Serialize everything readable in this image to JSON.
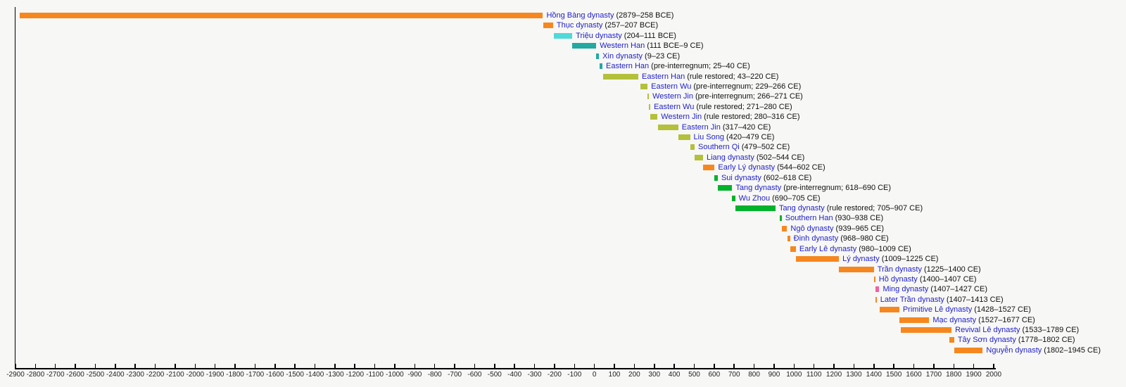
{
  "page": {
    "background": "#f7f7f5",
    "title": ""
  },
  "chart_data": {
    "type": "bar",
    "subtype": "horizontal-timeline-gantt",
    "title": "",
    "xlabel": "",
    "ylabel": "",
    "grid": false,
    "legend": "none",
    "x_axis": {
      "min": -2900,
      "max": 2000,
      "tick_step": 100,
      "tick_labels": [
        "-2900",
        "-2800",
        "-2700",
        "-2600",
        "-2500",
        "-2400",
        "-2300",
        "-2200",
        "-2100",
        "-2000",
        "-1900",
        "-1800",
        "-1700",
        "-1600",
        "-1500",
        "-1400",
        "-1300",
        "-1200",
        "-1100",
        "-1000",
        "-900",
        "-800",
        "-700",
        "-600",
        "-500",
        "-400",
        "-300",
        "-200",
        "-100",
        "0",
        "100",
        "200",
        "300",
        "400",
        "500",
        "600",
        "700",
        "800",
        "900",
        "1000",
        "1100",
        "1200",
        "1300",
        "1400",
        "1500",
        "1600",
        "1700",
        "1800",
        "1900",
        "2000"
      ]
    },
    "colors": {
      "orange": "#f6871f",
      "turquoise": "#4fd9d8",
      "teal": "#21a9a2",
      "olive": "#b3c03b",
      "green": "#00b22c",
      "pink": "#f35fa0"
    },
    "text_colors": {
      "name": "#1f1fcb",
      "dates": "#111111",
      "ticks": "#222222"
    },
    "rows": [
      {
        "name": "Hồng Bàng dynasty",
        "dates": "(2879–258 BCE)",
        "start": -2879,
        "end": -258,
        "color": "orange"
      },
      {
        "name": "Thục dynasty",
        "dates": "(257–207 BCE)",
        "start": -257,
        "end": -207,
        "color": "orange"
      },
      {
        "name": "Triệu dynasty",
        "dates": "(204–111 BCE)",
        "start": -204,
        "end": -111,
        "color": "turquoise"
      },
      {
        "name": "Western Han",
        "dates": "(111 BCE–9 CE)",
        "start": -111,
        "end": 9,
        "color": "teal"
      },
      {
        "name": "Xin dynasty",
        "dates": "(9–23 CE)",
        "start": 9,
        "end": 23,
        "color": "teal"
      },
      {
        "name": "Eastern Han",
        "dates": "(pre-interregnum; 25–40 CE)",
        "start": 25,
        "end": 40,
        "color": "teal"
      },
      {
        "name": "Eastern Han",
        "dates": "(rule restored; 43–220 CE)",
        "start": 43,
        "end": 220,
        "color": "olive"
      },
      {
        "name": "Eastern Wu",
        "dates": "(pre-interregnum; 229–266 CE)",
        "start": 229,
        "end": 266,
        "color": "olive"
      },
      {
        "name": "Western Jin",
        "dates": "(pre-interregnum; 266–271 CE)",
        "start": 266,
        "end": 271,
        "color": "olive"
      },
      {
        "name": "Eastern Wu",
        "dates": "(rule restored; 271–280 CE)",
        "start": 271,
        "end": 280,
        "color": "olive"
      },
      {
        "name": "Western Jin",
        "dates": "(rule restored; 280–316 CE)",
        "start": 280,
        "end": 316,
        "color": "olive"
      },
      {
        "name": "Eastern Jin",
        "dates": "(317–420 CE)",
        "start": 317,
        "end": 420,
        "color": "olive"
      },
      {
        "name": "Liu Song",
        "dates": "(420–479 CE)",
        "start": 420,
        "end": 479,
        "color": "olive"
      },
      {
        "name": "Southern Qi",
        "dates": "(479–502 CE)",
        "start": 479,
        "end": 502,
        "color": "olive"
      },
      {
        "name": "Liang dynasty",
        "dates": "(502–544 CE)",
        "start": 502,
        "end": 544,
        "color": "olive"
      },
      {
        "name": "Early Lý dynasty",
        "dates": "(544–602 CE)",
        "start": 544,
        "end": 602,
        "color": "orange"
      },
      {
        "name": "Sui dynasty",
        "dates": "(602–618 CE)",
        "start": 602,
        "end": 618,
        "color": "green"
      },
      {
        "name": "Tang dynasty",
        "dates": "(pre-interregnum; 618–690 CE)",
        "start": 618,
        "end": 690,
        "color": "green"
      },
      {
        "name": "Wu Zhou",
        "dates": "(690–705 CE)",
        "start": 690,
        "end": 705,
        "color": "green"
      },
      {
        "name": "Tang dynasty",
        "dates": "(rule restored; 705–907 CE)",
        "start": 705,
        "end": 907,
        "color": "green"
      },
      {
        "name": "Southern Han",
        "dates": "(930–938 CE)",
        "start": 930,
        "end": 938,
        "color": "green"
      },
      {
        "name": "Ngô dynasty",
        "dates": "(939–965 CE)",
        "start": 939,
        "end": 965,
        "color": "orange"
      },
      {
        "name": "Đinh dynasty",
        "dates": "(968–980 CE)",
        "start": 968,
        "end": 980,
        "color": "orange"
      },
      {
        "name": "Early Lê dynasty",
        "dates": "(980–1009 CE)",
        "start": 980,
        "end": 1009,
        "color": "orange"
      },
      {
        "name": "Lý dynasty",
        "dates": "(1009–1225 CE)",
        "start": 1009,
        "end": 1225,
        "color": "orange"
      },
      {
        "name": "Trần dynasty",
        "dates": "(1225–1400 CE)",
        "start": 1225,
        "end": 1400,
        "color": "orange"
      },
      {
        "name": "Hồ dynasty",
        "dates": "(1400–1407 CE)",
        "start": 1400,
        "end": 1407,
        "color": "orange"
      },
      {
        "name": "Ming dynasty",
        "dates": "(1407–1427 CE)",
        "start": 1407,
        "end": 1427,
        "color": "pink"
      },
      {
        "name": "Later Trần dynasty",
        "dates": "(1407–1413 CE)",
        "start": 1407,
        "end": 1413,
        "color": "orange"
      },
      {
        "name": "Primitive Lê dynasty",
        "dates": "(1428–1527 CE)",
        "start": 1428,
        "end": 1527,
        "color": "orange"
      },
      {
        "name": "Mạc dynasty",
        "dates": "(1527–1677 CE)",
        "start": 1527,
        "end": 1677,
        "color": "orange"
      },
      {
        "name": "Revival Lê dynasty",
        "dates": "(1533–1789 CE)",
        "start": 1533,
        "end": 1789,
        "color": "orange"
      },
      {
        "name": "Tây Sơn dynasty",
        "dates": "(1778–1802 CE)",
        "start": 1778,
        "end": 1802,
        "color": "orange"
      },
      {
        "name": "Nguyễn dynasty",
        "dates": "(1802–1945 CE)",
        "start": 1802,
        "end": 1945,
        "color": "orange"
      }
    ]
  }
}
